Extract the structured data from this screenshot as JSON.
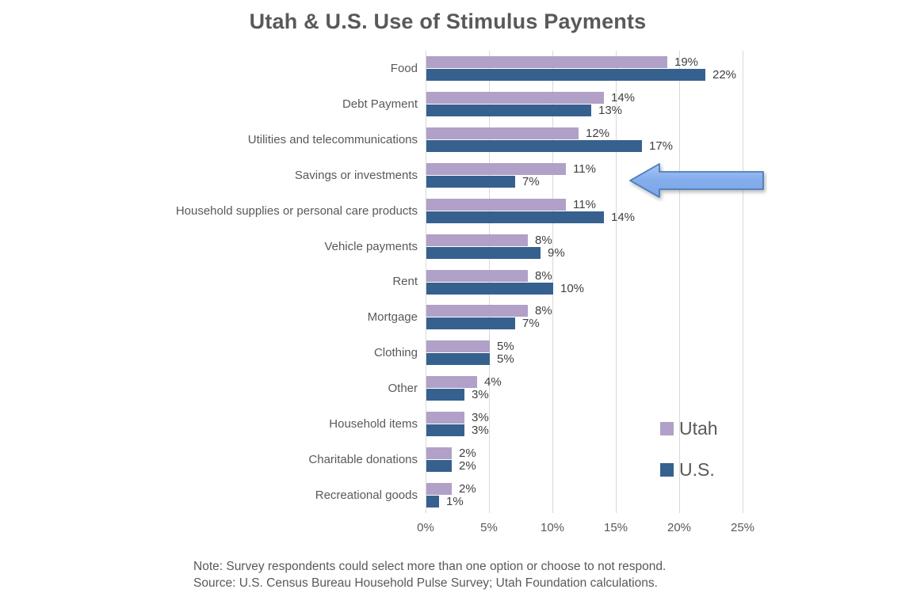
{
  "title": "Utah & U.S. Use of Stimulus Payments",
  "chart_data": {
    "type": "bar",
    "orientation": "horizontal",
    "title": "Utah & U.S. Use of Stimulus Payments",
    "categories": [
      "Food",
      "Debt Payment",
      "Utilities and telecommunications",
      "Savings or investments",
      "Household supplies or personal care products",
      "Vehicle payments",
      "Rent",
      "Mortgage",
      "Clothing",
      "Other",
      "Household items",
      "Charitable donations",
      "Recreational goods"
    ],
    "series": [
      {
        "name": "Utah",
        "color": "#b1a0c7",
        "values": [
          19,
          14,
          12,
          11,
          11,
          8,
          8,
          8,
          5,
          4,
          3,
          2,
          2
        ]
      },
      {
        "name": "U.S.",
        "color": "#36618f",
        "values": [
          22,
          13,
          17,
          7,
          14,
          9,
          10,
          7,
          5,
          3,
          3,
          2,
          1
        ]
      }
    ],
    "value_suffix": "%",
    "x_ticks": [
      "0%",
      "5%",
      "10%",
      "15%",
      "20%",
      "25%"
    ],
    "x_tick_values": [
      0,
      5,
      10,
      15,
      20,
      25
    ],
    "xlim": [
      0,
      25
    ],
    "grid": "vertical-only",
    "gridline_color": "#d9d9d9",
    "legend_position": "right-middle",
    "annotation": "Blue left-pointing block arrow highlighting the Savings or investments row"
  },
  "legend": {
    "items": [
      {
        "label": "Utah",
        "color": "#b1a0c7"
      },
      {
        "label": "U.S.",
        "color": "#36618f"
      }
    ]
  },
  "annotation_arrow": {
    "points_at": "Savings or investments",
    "fill_top": "#a9c5f2",
    "fill_bottom": "#7ba4e8",
    "stroke": "#4a7ebb"
  },
  "notes": {
    "line1": "Note: Survey respondents could select more than one option or choose to not respond.",
    "line2": "Source: U.S. Census Bureau Household Pulse Survey; Utah Foundation calculations."
  }
}
